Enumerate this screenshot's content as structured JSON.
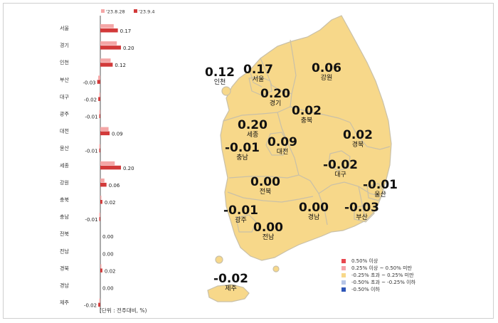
{
  "chart_data": {
    "type": "bar",
    "orientation": "horizontal",
    "legend": [
      "'23.8.28",
      "'23.9.4"
    ],
    "legend_placement": "top",
    "categories": [
      "서울",
      "경기",
      "인천",
      "부산",
      "대구",
      "광주",
      "대전",
      "울산",
      "세종",
      "강원",
      "충북",
      "충남",
      "전북",
      "전남",
      "경북",
      "경남",
      "제주"
    ],
    "series": [
      {
        "name": "'23.8.28",
        "color": "#f4a6a6",
        "values": [
          0.13,
          0.16,
          0.1,
          -0.02,
          -0.01,
          -0.01,
          0.08,
          -0.01,
          0.14,
          0.04,
          0.01,
          -0.01,
          0.0,
          0.0,
          0.01,
          0.0,
          -0.01
        ]
      },
      {
        "name": "'23.9.4",
        "color": "#d23a3a",
        "values": [
          0.17,
          0.2,
          0.12,
          -0.03,
          -0.02,
          -0.01,
          0.09,
          -0.01,
          0.2,
          0.06,
          0.02,
          -0.01,
          0.0,
          0.0,
          0.02,
          0.0,
          -0.02
        ]
      }
    ],
    "value_labels": [
      "0.17",
      "0.20",
      "0.12",
      "-0.03",
      "-0.02",
      "-0.01",
      "0.09",
      "-0.01",
      "0.20",
      "0.06",
      "0.02",
      "-0.01",
      "0.00",
      "0.00",
      "0.02",
      "0.00",
      "-0.02"
    ],
    "unit_note": "(단위 : 전주대비, %)"
  },
  "map": {
    "regions": [
      {
        "name": "인천",
        "value": "0.12"
      },
      {
        "name": "서울",
        "value": "0.17"
      },
      {
        "name": "경기",
        "value": "0.20"
      },
      {
        "name": "강원",
        "value": "0.06"
      },
      {
        "name": "충북",
        "value": "0.02"
      },
      {
        "name": "세종",
        "value": "0.20"
      },
      {
        "name": "충남",
        "value": "-0.01"
      },
      {
        "name": "대전",
        "value": "0.09"
      },
      {
        "name": "경북",
        "value": "0.02"
      },
      {
        "name": "대구",
        "value": "-0.02"
      },
      {
        "name": "울산",
        "value": "-0.01"
      },
      {
        "name": "전북",
        "value": "0.00"
      },
      {
        "name": "광주",
        "value": "-0.01"
      },
      {
        "name": "경남",
        "value": "0.00"
      },
      {
        "name": "부산",
        "value": "-0.03"
      },
      {
        "name": "전남",
        "value": "0.00"
      },
      {
        "name": "제주",
        "value": "-0.02"
      }
    ],
    "land_color": "#f7d88a",
    "border_color": "#c9c0a8"
  },
  "legend": {
    "items": [
      {
        "label": "0.50% 이상",
        "color": "#e8474f"
      },
      {
        "label": "0.25% 이상 ~ 0.50% 미만",
        "color": "#f5a3aa"
      },
      {
        "label": "-0.25% 초과 ~ 0.25% 미만",
        "color": "#f7d88a"
      },
      {
        "label": "-0.50% 초과 ~ -0.25% 이하",
        "color": "#b7c6e8"
      },
      {
        "label": "-0.50% 이하",
        "color": "#2e56b8"
      }
    ]
  }
}
